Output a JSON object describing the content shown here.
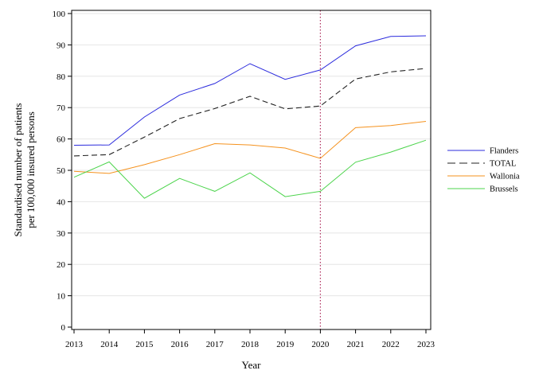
{
  "chart_data": {
    "type": "line",
    "title": "",
    "xlabel": "Year",
    "ylabel": "Standardised number of patients per 100,000 insured persons",
    "ylabel_lines": [
      "Standardised number of patients",
      "per 100,000 insured persons"
    ],
    "x": [
      2013,
      2014,
      2015,
      2016,
      2017,
      2018,
      2019,
      2020,
      2021,
      2022,
      2023
    ],
    "x_tick_labels": [
      "2013",
      "2014",
      "2015",
      "2016",
      "2017",
      "2018",
      "2019",
      "2020",
      "2021",
      "2022",
      "2023"
    ],
    "ylim": [
      0,
      100
    ],
    "y_ticks": [
      0,
      10,
      20,
      30,
      40,
      50,
      60,
      70,
      80,
      90,
      100
    ],
    "y_tick_labels": [
      "0",
      "10",
      "20",
      "30",
      "40",
      "50",
      "60",
      "70",
      "80",
      "90",
      "100"
    ],
    "grid": "horizontal",
    "legend_position": "right",
    "reference_line": {
      "x": 2020,
      "color": "#b03060",
      "style": "dotted"
    },
    "series": [
      {
        "name": "Flanders",
        "color": "#2b2bdd",
        "dash": "solid",
        "values": [
          58.0,
          58.1,
          67.0,
          74.0,
          77.7,
          84.0,
          79.0,
          82.0,
          89.7,
          92.7,
          92.9
        ]
      },
      {
        "name": "TOTAL",
        "color": "#222222",
        "dash": "dashed",
        "values": [
          54.6,
          55.0,
          60.6,
          66.5,
          69.7,
          73.6,
          69.6,
          70.5,
          79.1,
          81.4,
          82.5
        ]
      },
      {
        "name": "Wallonia",
        "color": "#f5921e",
        "dash": "solid",
        "values": [
          49.7,
          49.0,
          51.8,
          55.0,
          58.5,
          58.1,
          57.1,
          53.8,
          63.6,
          64.3,
          65.6
        ]
      },
      {
        "name": "Brussels",
        "color": "#4cd44c",
        "dash": "solid",
        "values": [
          47.8,
          52.7,
          41.1,
          47.4,
          43.3,
          49.2,
          41.6,
          43.3,
          52.6,
          55.8,
          59.6
        ]
      }
    ]
  }
}
